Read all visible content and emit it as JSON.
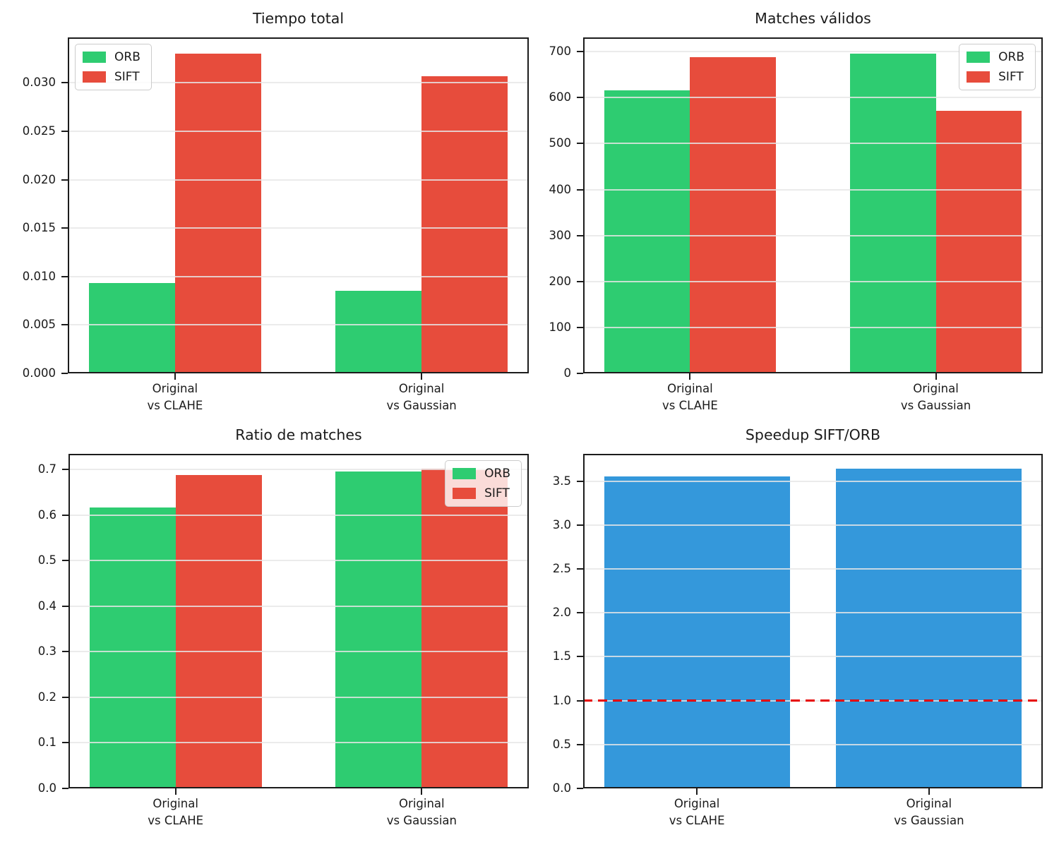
{
  "figure": {
    "background": "#ffffff",
    "colors": {
      "orb": "#2ecc71",
      "sift": "#e74c3c",
      "speedup_bar": "#3498db",
      "reference_line": "#e60000",
      "grid": "#e7e7e7",
      "spine": "#1c1c1c",
      "text": "#1a1a1a",
      "legend_border": "#cccccc"
    }
  },
  "chart_data": [
    {
      "type": "bar",
      "title": "Tiempo total",
      "categories": [
        "Original\nvs CLAHE",
        "Original\nvs Gaussian"
      ],
      "series": [
        {
          "name": "ORB",
          "color": "#2ecc71",
          "values": [
            0.0093,
            0.0085
          ]
        },
        {
          "name": "SIFT",
          "color": "#e74c3c",
          "values": [
            0.033,
            0.0307
          ]
        }
      ],
      "ylim": [
        0,
        0.0347
      ],
      "yticks": [
        0,
        0.005,
        0.01,
        0.015,
        0.02,
        0.025,
        0.03
      ],
      "ytick_labels": [
        "0.000",
        "0.005",
        "0.010",
        "0.015",
        "0.020",
        "0.025",
        "0.030"
      ],
      "grid": true,
      "legend_position": "upper-left",
      "reference_line": null
    },
    {
      "type": "bar",
      "title": "Matches válidos",
      "categories": [
        "Original\nvs CLAHE",
        "Original\nvs Gaussian"
      ],
      "series": [
        {
          "name": "ORB",
          "color": "#2ecc71",
          "values": [
            616,
            695
          ]
        },
        {
          "name": "SIFT",
          "color": "#e74c3c",
          "values": [
            688,
            572
          ]
        }
      ],
      "ylim": [
        0,
        731
      ],
      "yticks": [
        0,
        100,
        200,
        300,
        400,
        500,
        600,
        700
      ],
      "ytick_labels": [
        "0",
        "100",
        "200",
        "300",
        "400",
        "500",
        "600",
        "700"
      ],
      "grid": true,
      "legend_position": "upper-right",
      "reference_line": null
    },
    {
      "type": "bar",
      "title": "Ratio de matches",
      "categories": [
        "Original\nvs CLAHE",
        "Original\nvs Gaussian"
      ],
      "series": [
        {
          "name": "ORB",
          "color": "#2ecc71",
          "values": [
            0.616,
            0.696
          ]
        },
        {
          "name": "SIFT",
          "color": "#e74c3c",
          "values": [
            0.688,
            0.702
          ]
        }
      ],
      "ylim": [
        0,
        0.734
      ],
      "yticks": [
        0,
        0.1,
        0.2,
        0.3,
        0.4,
        0.5,
        0.6,
        0.7
      ],
      "ytick_labels": [
        "0.0",
        "0.1",
        "0.2",
        "0.3",
        "0.4",
        "0.5",
        "0.6",
        "0.7"
      ],
      "grid": true,
      "legend_position": "upper-right",
      "reference_line": null
    },
    {
      "type": "bar",
      "title": "Speedup SIFT/ORB",
      "categories": [
        "Original\nvs CLAHE",
        "Original\nvs Gaussian"
      ],
      "series": [
        {
          "name": "Speedup",
          "color": "#3498db",
          "values": [
            3.55,
            3.64
          ]
        }
      ],
      "ylim": [
        0,
        3.81
      ],
      "yticks": [
        0,
        0.5,
        1.0,
        1.5,
        2.0,
        2.5,
        3.0,
        3.5
      ],
      "ytick_labels": [
        "0.0",
        "0.5",
        "1.0",
        "1.5",
        "2.0",
        "2.5",
        "3.0",
        "3.5"
      ],
      "grid": true,
      "legend_position": null,
      "reference_line": {
        "value": 1.0,
        "color": "#e60000",
        "style": "dashed"
      }
    }
  ]
}
